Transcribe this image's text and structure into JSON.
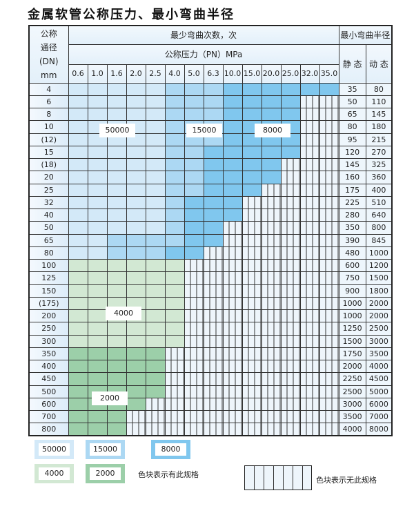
{
  "title": "金属软管公称压力、最小弯曲半径",
  "header": {
    "dn_label": [
      "公称",
      "通径",
      "(DN)",
      "mm"
    ],
    "cycles_label": "最少弯曲次数，次",
    "pressure_label": "公称压力（PN）MPa",
    "radius_label": "最小弯曲半径",
    "static_label": "静 态",
    "dynamic_label": "动 态",
    "pressures": [
      "0.6",
      "1.0",
      "1.6",
      "2.0",
      "2.5",
      "4.0",
      "5.0",
      "6.3",
      "10.0",
      "15.0",
      "20.0",
      "25.0",
      "32.0",
      "35.0"
    ]
  },
  "cycle_classes": {
    "a": "50000",
    "b": "15000",
    "c": "8000",
    "d": "4000",
    "e": "2000",
    "x": "无此规格"
  },
  "colors": {
    "a": "#d3e9f8",
    "b": "#acd8f3",
    "c": "#80c7ee",
    "d": "#d2e8d3",
    "e": "#9ccfa9"
  },
  "rows": [
    {
      "dn": "4",
      "static": "35",
      "dynamic": "80",
      "cells": "aaaaabbbcccccc"
    },
    {
      "dn": "6",
      "static": "50",
      "dynamic": "110",
      "cells": "aaaaabbbccccxx"
    },
    {
      "dn": "8",
      "static": "65",
      "dynamic": "145",
      "cells": "aaaaabbbccccxx"
    },
    {
      "dn": "10",
      "static": "80",
      "dynamic": "180",
      "cells": "aaaaabbbccccxx"
    },
    {
      "dn": "(12)",
      "static": "95",
      "dynamic": "215",
      "cells": "aaaaabbbccccxx"
    },
    {
      "dn": "15",
      "static": "120",
      "dynamic": "270",
      "cells": "aaaaabbcccccxx"
    },
    {
      "dn": "(18)",
      "static": "145",
      "dynamic": "325",
      "cells": "aaaaabbccccxxx"
    },
    {
      "dn": "20",
      "static": "160",
      "dynamic": "360",
      "cells": "aaaaabbccccxxx"
    },
    {
      "dn": "25",
      "static": "175",
      "dynamic": "400",
      "cells": "aaaaabbcccxxxx"
    },
    {
      "dn": "32",
      "static": "225",
      "dynamic": "510",
      "cells": "aaaaabcccxxxxx"
    },
    {
      "dn": "40",
      "static": "280",
      "dynamic": "640",
      "cells": "aaaaabcccxxxxx"
    },
    {
      "dn": "50",
      "static": "350",
      "dynamic": "800",
      "cells": "aaaaabccxxxxxx"
    },
    {
      "dn": "65",
      "static": "390",
      "dynamic": "845",
      "cells": "aabbbbccxxxxxx"
    },
    {
      "dn": "80",
      "static": "480",
      "dynamic": "1000",
      "cells": "aabbbccxxxxxxx"
    },
    {
      "dn": "100",
      "static": "600",
      "dynamic": "1200",
      "cells": "ddddddxxxxxxxx"
    },
    {
      "dn": "125",
      "static": "750",
      "dynamic": "1500",
      "cells": "ddddddxxxxxxxx"
    },
    {
      "dn": "150",
      "static": "900",
      "dynamic": "1800",
      "cells": "ddddddxxxxxxxx"
    },
    {
      "dn": "(175)",
      "static": "1000",
      "dynamic": "2000",
      "cells": "ddddddxxxxxxxx"
    },
    {
      "dn": "200",
      "static": "1000",
      "dynamic": "2000",
      "cells": "ddddddxxxxxxxx"
    },
    {
      "dn": "250",
      "static": "1250",
      "dynamic": "2500",
      "cells": "ddddddxxxxxxxx"
    },
    {
      "dn": "300",
      "static": "1500",
      "dynamic": "3000",
      "cells": "ddddddxxxxxxxx"
    },
    {
      "dn": "350",
      "static": "1750",
      "dynamic": "3500",
      "cells": "eeeeexxxxxxxxx"
    },
    {
      "dn": "400",
      "static": "2000",
      "dynamic": "4000",
      "cells": "eeeeexxxxxxxxx"
    },
    {
      "dn": "450",
      "static": "2250",
      "dynamic": "4500",
      "cells": "eeeeexxxxxxxxx"
    },
    {
      "dn": "500",
      "static": "2500",
      "dynamic": "5000",
      "cells": "eeeeexxxxxxxxx"
    },
    {
      "dn": "600",
      "static": "3000",
      "dynamic": "6000",
      "cells": "eeeexxxxxxxxxx"
    },
    {
      "dn": "700",
      "static": "3500",
      "dynamic": "7000",
      "cells": "eeexxxxxxxxxxx"
    },
    {
      "dn": "800",
      "static": "4000",
      "dynamic": "8000",
      "cells": "eeexxxxxxxxxxx"
    }
  ],
  "region_labels": {
    "a": "50000",
    "b": "15000",
    "c": "8000",
    "d": "4000",
    "e": "2000"
  },
  "legend": {
    "items": [
      "50000",
      "15000",
      "8000",
      "4000",
      "2000"
    ],
    "has_spec_text": "色块表示有此规格",
    "no_spec_text": "色块表示无此规格"
  }
}
